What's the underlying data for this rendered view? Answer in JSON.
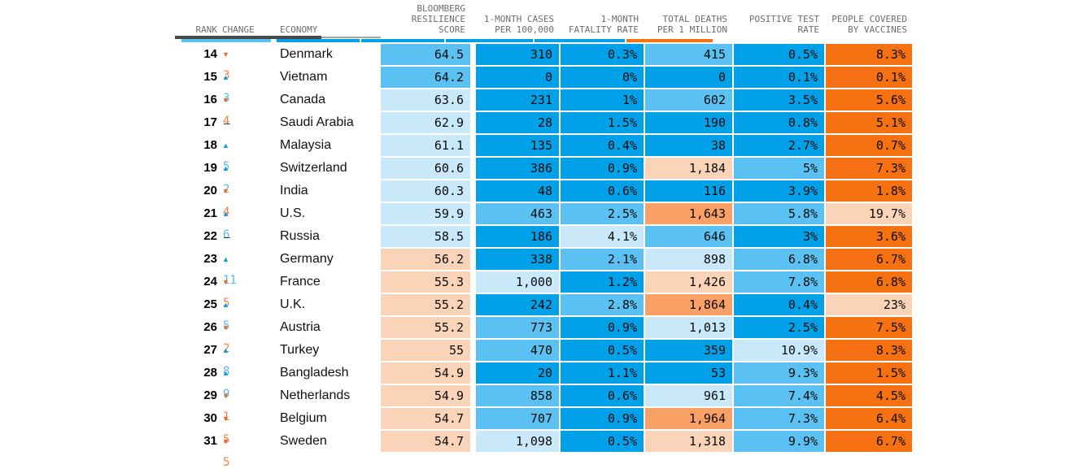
{
  "palette": {
    "tier_b1": "#00A1E8",
    "tier_b2": "#5AC1F2",
    "tier_b3": "#C9E9FB",
    "tier_o1": "#F57111",
    "tier_o2": "#F8A065",
    "tier_o3": "#FAD4B8",
    "up": "#1097E4",
    "up_num": "#58B8F0",
    "down": "#F26A1D",
    "down_num": "#F57E49",
    "header_text": "#6A6C6E",
    "rule_dark": "#4B4B4E",
    "rule_light": "#A5A5A5",
    "text": "#000000"
  },
  "header": {
    "rank": "RANK",
    "change": "CHANGE",
    "economy": "ECONOMY",
    "score": "BLOOMBERG\nRESILIENCE\nSCORE",
    "cases": "1-MONTH CASES\nPER 100,000",
    "fatality": "1-MONTH\nFATALITY RATE",
    "deaths": "TOTAL DEATHS\nPER 1 MILLION",
    "test": "POSITIVE TEST\nRATE",
    "vaccines": "PEOPLE COVERED\nBY VACCINES"
  },
  "partial_row_tiers": {
    "score": "b2",
    "cases": "b1",
    "fatality": "b1",
    "deaths": "b1",
    "test": "b1",
    "vaccines": "o1"
  },
  "rows": [
    {
      "rank": "14",
      "change": {
        "dir": "down",
        "value": "3"
      },
      "economy": "Denmark",
      "score": {
        "v": "64.5",
        "tier": "b2"
      },
      "cases": {
        "v": "310",
        "tier": "b1"
      },
      "fatality": {
        "v": "0.3%",
        "tier": "b1"
      },
      "deaths": {
        "v": "415",
        "tier": "b2"
      },
      "test": {
        "v": "0.5%",
        "tier": "b1"
      },
      "vaccines": {
        "v": "8.3%",
        "tier": "o1"
      }
    },
    {
      "rank": "15",
      "change": {
        "dir": "up",
        "value": "3"
      },
      "economy": "Vietnam",
      "score": {
        "v": "64.2",
        "tier": "b2"
      },
      "cases": {
        "v": "0",
        "tier": "b1"
      },
      "fatality": {
        "v": "0%",
        "tier": "b1"
      },
      "deaths": {
        "v": "0",
        "tier": "b1"
      },
      "test": {
        "v": "0.1%",
        "tier": "b1"
      },
      "vaccines": {
        "v": "0.1%",
        "tier": "o1"
      }
    },
    {
      "rank": "16",
      "change": {
        "dir": "down",
        "value": "4"
      },
      "economy": "Canada",
      "score": {
        "v": "63.6",
        "tier": "b3"
      },
      "cases": {
        "v": "231",
        "tier": "b1"
      },
      "fatality": {
        "v": "1%",
        "tier": "b1"
      },
      "deaths": {
        "v": "602",
        "tier": "b2"
      },
      "test": {
        "v": "3.5%",
        "tier": "b1"
      },
      "vaccines": {
        "v": "5.6%",
        "tier": "o1"
      }
    },
    {
      "rank": "17",
      "change": {
        "dir": "none",
        "value": "–"
      },
      "economy": "Saudi Arabia",
      "score": {
        "v": "62.9",
        "tier": "b3"
      },
      "cases": {
        "v": "28",
        "tier": "b1"
      },
      "fatality": {
        "v": "1.5%",
        "tier": "b1"
      },
      "deaths": {
        "v": "190",
        "tier": "b1"
      },
      "test": {
        "v": "0.8%",
        "tier": "b1"
      },
      "vaccines": {
        "v": "5.1%",
        "tier": "o1"
      }
    },
    {
      "rank": "18",
      "change": {
        "dir": "up",
        "value": "5"
      },
      "economy": "Malaysia",
      "score": {
        "v": "61.1",
        "tier": "b3"
      },
      "cases": {
        "v": "135",
        "tier": "b1"
      },
      "fatality": {
        "v": "0.4%",
        "tier": "b1"
      },
      "deaths": {
        "v": "38",
        "tier": "b1"
      },
      "test": {
        "v": "2.7%",
        "tier": "b1"
      },
      "vaccines": {
        "v": "0.7%",
        "tier": "o1"
      }
    },
    {
      "rank": "19",
      "change": {
        "dir": "up",
        "value": "2"
      },
      "economy": "Switzerland",
      "score": {
        "v": "60.6",
        "tier": "b3"
      },
      "cases": {
        "v": "386",
        "tier": "b1"
      },
      "fatality": {
        "v": "0.9%",
        "tier": "b1"
      },
      "deaths": {
        "v": "1,184",
        "tier": "o3"
      },
      "test": {
        "v": "5%",
        "tier": "b2"
      },
      "vaccines": {
        "v": "7.3%",
        "tier": "o1"
      }
    },
    {
      "rank": "20",
      "change": {
        "dir": "down",
        "value": "4"
      },
      "economy": "India",
      "score": {
        "v": "60.3",
        "tier": "b3"
      },
      "cases": {
        "v": "48",
        "tier": "b1"
      },
      "fatality": {
        "v": "0.6%",
        "tier": "b1"
      },
      "deaths": {
        "v": "116",
        "tier": "b1"
      },
      "test": {
        "v": "3.9%",
        "tier": "b1"
      },
      "vaccines": {
        "v": "1.8%",
        "tier": "o1"
      }
    },
    {
      "rank": "21",
      "change": {
        "dir": "up",
        "value": "6"
      },
      "economy": "U.S.",
      "score": {
        "v": "59.9",
        "tier": "b3"
      },
      "cases": {
        "v": "463",
        "tier": "b2"
      },
      "fatality": {
        "v": "2.5%",
        "tier": "b2"
      },
      "deaths": {
        "v": "1,643",
        "tier": "o2"
      },
      "test": {
        "v": "5.8%",
        "tier": "b2"
      },
      "vaccines": {
        "v": "19.7%",
        "tier": "o3"
      }
    },
    {
      "rank": "22",
      "change": {
        "dir": "none",
        "value": "–"
      },
      "economy": "Russia",
      "score": {
        "v": "58.5",
        "tier": "b3"
      },
      "cases": {
        "v": "186",
        "tier": "b1"
      },
      "fatality": {
        "v": "4.1%",
        "tier": "b3"
      },
      "deaths": {
        "v": "646",
        "tier": "b2"
      },
      "test": {
        "v": "3%",
        "tier": "b1"
      },
      "vaccines": {
        "v": "3.6%",
        "tier": "o1"
      }
    },
    {
      "rank": "23",
      "change": {
        "dir": "up",
        "value": "11"
      },
      "economy": "Germany",
      "score": {
        "v": "56.2",
        "tier": "o3"
      },
      "cases": {
        "v": "338",
        "tier": "b1"
      },
      "fatality": {
        "v": "2.1%",
        "tier": "b2"
      },
      "deaths": {
        "v": "898",
        "tier": "b3"
      },
      "test": {
        "v": "6.8%",
        "tier": "b2"
      },
      "vaccines": {
        "v": "6.7%",
        "tier": "o1"
      }
    },
    {
      "rank": "24",
      "change": {
        "dir": "down",
        "value": "5"
      },
      "economy": "France",
      "score": {
        "v": "55.3",
        "tier": "o3"
      },
      "cases": {
        "v": "1,000",
        "tier": "b3"
      },
      "fatality": {
        "v": "1.2%",
        "tier": "b1"
      },
      "deaths": {
        "v": "1,426",
        "tier": "o3"
      },
      "test": {
        "v": "7.8%",
        "tier": "b2"
      },
      "vaccines": {
        "v": "6.8%",
        "tier": "o1"
      }
    },
    {
      "rank": "25",
      "change": {
        "dir": "up",
        "value": "5"
      },
      "economy": "U.K.",
      "score": {
        "v": "55.2",
        "tier": "o3"
      },
      "cases": {
        "v": "242",
        "tier": "b1"
      },
      "fatality": {
        "v": "2.8%",
        "tier": "b2"
      },
      "deaths": {
        "v": "1,864",
        "tier": "o2"
      },
      "test": {
        "v": "0.4%",
        "tier": "b1"
      },
      "vaccines": {
        "v": "23%",
        "tier": "o3"
      }
    },
    {
      "rank": "26",
      "change": {
        "dir": "down",
        "value": "2"
      },
      "economy": "Austria",
      "score": {
        "v": "55.2",
        "tier": "o3"
      },
      "cases": {
        "v": "773",
        "tier": "b2"
      },
      "fatality": {
        "v": "0.9%",
        "tier": "b1"
      },
      "deaths": {
        "v": "1,013",
        "tier": "b3"
      },
      "test": {
        "v": "2.5%",
        "tier": "b1"
      },
      "vaccines": {
        "v": "7.5%",
        "tier": "o1"
      }
    },
    {
      "rank": "27",
      "change": {
        "dir": "up",
        "value": "8"
      },
      "economy": "Turkey",
      "score": {
        "v": "55",
        "tier": "o3"
      },
      "cases": {
        "v": "470",
        "tier": "b2"
      },
      "fatality": {
        "v": "0.5%",
        "tier": "b1"
      },
      "deaths": {
        "v": "359",
        "tier": "b1"
      },
      "test": {
        "v": "10.9%",
        "tier": "b3"
      },
      "vaccines": {
        "v": "8.3%",
        "tier": "o1"
      }
    },
    {
      "rank": "28",
      "change": {
        "dir": "up",
        "value": "9"
      },
      "economy": "Bangladesh",
      "score": {
        "v": "54.9",
        "tier": "o3"
      },
      "cases": {
        "v": "20",
        "tier": "b1"
      },
      "fatality": {
        "v": "1.1%",
        "tier": "b1"
      },
      "deaths": {
        "v": "53",
        "tier": "b1"
      },
      "test": {
        "v": "9.3%",
        "tier": "b2"
      },
      "vaccines": {
        "v": "1.5%",
        "tier": "o1"
      }
    },
    {
      "rank": "29",
      "change": {
        "dir": "down",
        "value": "1"
      },
      "economy": "Netherlands",
      "score": {
        "v": "54.9",
        "tier": "o3"
      },
      "cases": {
        "v": "858",
        "tier": "b2"
      },
      "fatality": {
        "v": "0.6%",
        "tier": "b1"
      },
      "deaths": {
        "v": "961",
        "tier": "b3"
      },
      "test": {
        "v": "7.4%",
        "tier": "b2"
      },
      "vaccines": {
        "v": "4.5%",
        "tier": "o1"
      }
    },
    {
      "rank": "30",
      "change": {
        "dir": "down",
        "value": "5"
      },
      "economy": "Belgium",
      "score": {
        "v": "54.7",
        "tier": "o3"
      },
      "cases": {
        "v": "707",
        "tier": "b2"
      },
      "fatality": {
        "v": "0.9%",
        "tier": "b1"
      },
      "deaths": {
        "v": "1,964",
        "tier": "o2"
      },
      "test": {
        "v": "7.3%",
        "tier": "b2"
      },
      "vaccines": {
        "v": "6.4%",
        "tier": "o1"
      }
    },
    {
      "rank": "31",
      "change": {
        "dir": "down",
        "value": "5"
      },
      "economy": "Sweden",
      "score": {
        "v": "54.7",
        "tier": "o3"
      },
      "cases": {
        "v": "1,098",
        "tier": "b3"
      },
      "fatality": {
        "v": "0.5%",
        "tier": "b1"
      },
      "deaths": {
        "v": "1,318",
        "tier": "o3"
      },
      "test": {
        "v": "9.9%",
        "tier": "b2"
      },
      "vaccines": {
        "v": "6.7%",
        "tier": "o1"
      }
    }
  ],
  "chart_data": {
    "type": "table",
    "title": "",
    "columns": [
      "RANK",
      "CHANGE",
      "ECONOMY",
      "BLOOMBERG RESILIENCE SCORE",
      "1-MONTH CASES PER 100,000",
      "1-MONTH FATALITY RATE",
      "TOTAL DEATHS PER 1 MILLION",
      "POSITIVE TEST RATE",
      "PEOPLE COVERED BY VACCINES"
    ],
    "rows": [
      [
        14,
        "▼3",
        "Denmark",
        64.5,
        310,
        "0.3%",
        415,
        "0.5%",
        "8.3%"
      ],
      [
        15,
        "▲3",
        "Vietnam",
        64.2,
        0,
        "0%",
        0,
        "0.1%",
        "0.1%"
      ],
      [
        16,
        "▼4",
        "Canada",
        63.6,
        231,
        "1%",
        602,
        "3.5%",
        "5.6%"
      ],
      [
        17,
        "–",
        "Saudi Arabia",
        62.9,
        28,
        "1.5%",
        190,
        "0.8%",
        "5.1%"
      ],
      [
        18,
        "▲5",
        "Malaysia",
        61.1,
        135,
        "0.4%",
        38,
        "2.7%",
        "0.7%"
      ],
      [
        19,
        "▲2",
        "Switzerland",
        60.6,
        386,
        "0.9%",
        1184,
        "5%",
        "7.3%"
      ],
      [
        20,
        "▼4",
        "India",
        60.3,
        48,
        "0.6%",
        116,
        "3.9%",
        "1.8%"
      ],
      [
        21,
        "▲6",
        "U.S.",
        59.9,
        463,
        "2.5%",
        1643,
        "5.8%",
        "19.7%"
      ],
      [
        22,
        "–",
        "Russia",
        58.5,
        186,
        "4.1%",
        646,
        "3%",
        "3.6%"
      ],
      [
        23,
        "▲11",
        "Germany",
        56.2,
        338,
        "2.1%",
        898,
        "6.8%",
        "6.7%"
      ],
      [
        24,
        "▼5",
        "France",
        55.3,
        1000,
        "1.2%",
        1426,
        "7.8%",
        "6.8%"
      ],
      [
        25,
        "▲5",
        "U.K.",
        55.2,
        242,
        "2.8%",
        1864,
        "0.4%",
        "23%"
      ],
      [
        26,
        "▼2",
        "Austria",
        55.2,
        773,
        "0.9%",
        1013,
        "2.5%",
        "7.5%"
      ],
      [
        27,
        "▲8",
        "Turkey",
        55,
        470,
        "0.5%",
        359,
        "10.9%",
        "8.3%"
      ],
      [
        28,
        "▲9",
        "Bangladesh",
        54.9,
        20,
        "1.1%",
        53,
        "9.3%",
        "1.5%"
      ],
      [
        29,
        "▼1",
        "Netherlands",
        54.9,
        858,
        "0.6%",
        961,
        "7.4%",
        "4.5%"
      ],
      [
        30,
        "▼5",
        "Belgium",
        54.7,
        707,
        "0.9%",
        1964,
        "7.3%",
        "6.4%"
      ],
      [
        31,
        "▼5",
        "Sweden",
        54.7,
        1098,
        "0.5%",
        1318,
        "9.9%",
        "6.7%"
      ]
    ]
  }
}
